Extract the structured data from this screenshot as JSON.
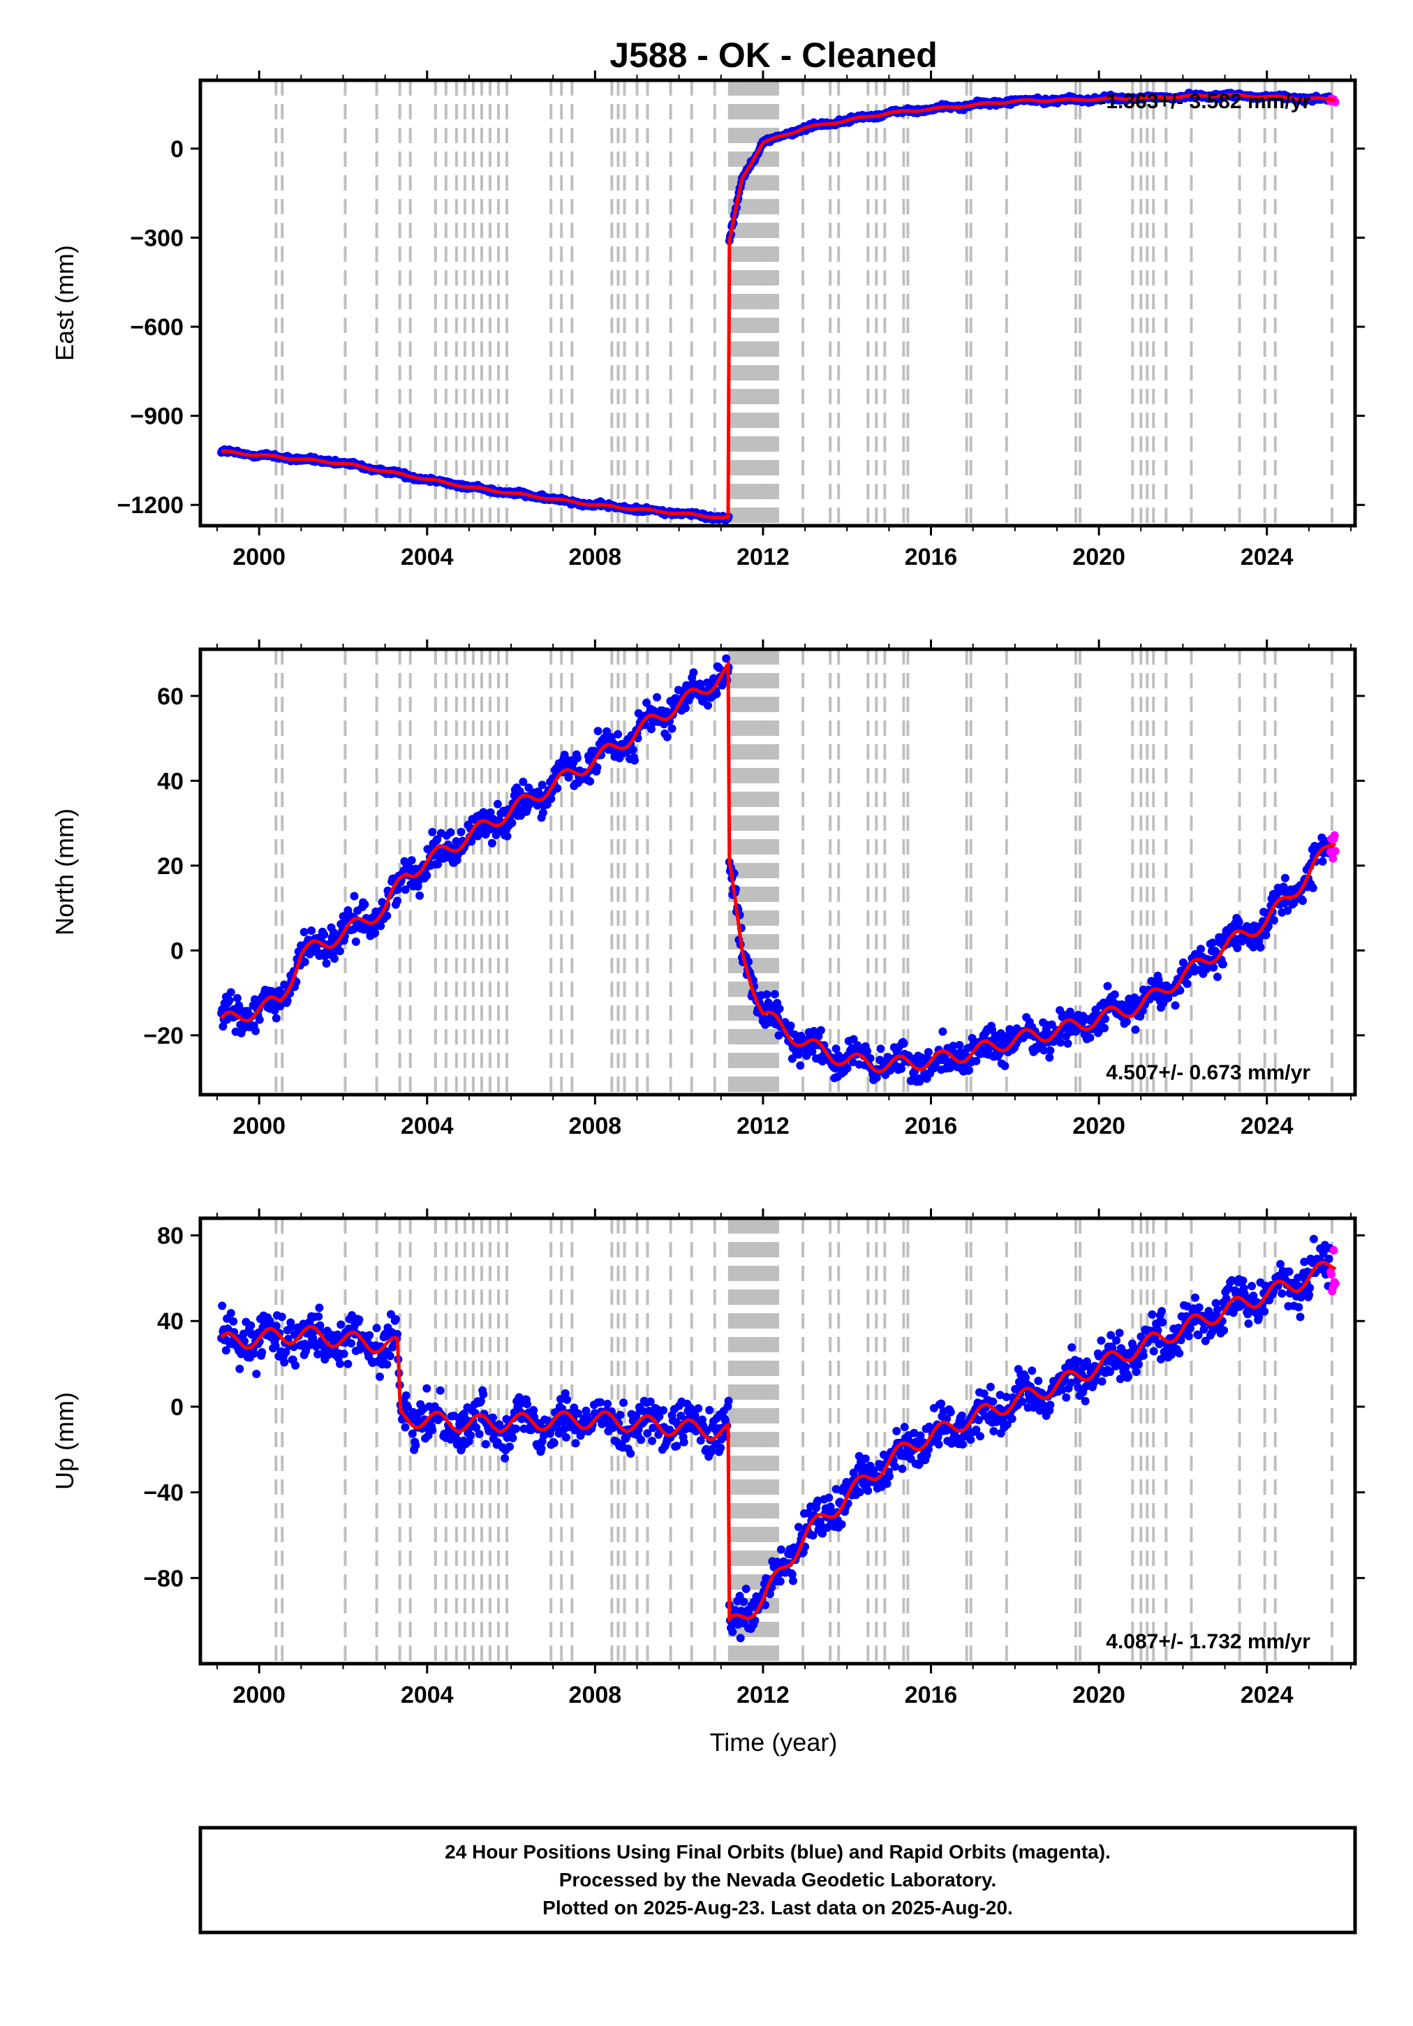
{
  "title": "J588  - OK - Cleaned",
  "xlabel": "Time (year)",
  "footer": [
    "24 Hour Positions Using Final Orbits (blue) and Rapid Orbits (magenta).",
    "Processed by the Nevada Geodetic Laboratory.",
    "Plotted on 2025-Aug-23. Last data on 2025-Aug-20."
  ],
  "colors": {
    "final_orbits": "#0000ff",
    "rapid_orbits": "#ff00ff",
    "model_fit": "#ff0000",
    "steps": "#bfbfbf"
  },
  "chart_data": [
    {
      "type": "scatter",
      "name": "east",
      "ylabel": "East (mm)",
      "xlim": [
        1998.6,
        2026.1
      ],
      "ylim": [
        -1270,
        230
      ],
      "xticks": [
        2000,
        2004,
        2008,
        2012,
        2016,
        2020,
        2024
      ],
      "yticks": [
        0,
        -300,
        -600,
        -900,
        -1200
      ],
      "rate_text": "-1.363+/- 3.582 mm/yr",
      "rate_position": "top-right",
      "grid": false,
      "data_span": [
        1999.1,
        2025.63
      ],
      "key_points": [
        {
          "x": 1999.1,
          "y": -1020
        },
        {
          "x": 2002.0,
          "y": -1060
        },
        {
          "x": 2005.0,
          "y": -1140
        },
        {
          "x": 2008.0,
          "y": -1200
        },
        {
          "x": 2011.18,
          "y": -1245
        },
        {
          "x": 2011.19,
          "y": -320
        },
        {
          "x": 2011.5,
          "y": -100
        },
        {
          "x": 2012.0,
          "y": 20
        },
        {
          "x": 2013.0,
          "y": 70
        },
        {
          "x": 2015.0,
          "y": 120
        },
        {
          "x": 2018.0,
          "y": 160
        },
        {
          "x": 2021.0,
          "y": 170
        },
        {
          "x": 2023.0,
          "y": 180
        },
        {
          "x": 2025.6,
          "y": 165
        }
      ]
    },
    {
      "type": "scatter",
      "name": "north",
      "ylabel": "North (mm)",
      "xlim": [
        1998.6,
        2026.1
      ],
      "ylim": [
        -34,
        71
      ],
      "xticks": [
        2000,
        2004,
        2008,
        2012,
        2016,
        2020,
        2024
      ],
      "yticks": [
        60,
        40,
        20,
        0,
        -20
      ],
      "rate_text": "4.507+/- 0.673 mm/yr",
      "rate_position": "bottom-right",
      "grid": false,
      "data_span": [
        1999.1,
        2025.63
      ],
      "key_points": [
        {
          "x": 1999.1,
          "y": -17
        },
        {
          "x": 2000.5,
          "y": -12
        },
        {
          "x": 2001.0,
          "y": -1
        },
        {
          "x": 2002.0,
          "y": 4
        },
        {
          "x": 2003.0,
          "y": 10
        },
        {
          "x": 2003.5,
          "y": 18
        },
        {
          "x": 2004.5,
          "y": 24
        },
        {
          "x": 2005.5,
          "y": 30
        },
        {
          "x": 2006.5,
          "y": 36
        },
        {
          "x": 2007.5,
          "y": 42
        },
        {
          "x": 2008.5,
          "y": 48
        },
        {
          "x": 2009.5,
          "y": 55
        },
        {
          "x": 2010.5,
          "y": 61
        },
        {
          "x": 2011.18,
          "y": 66
        },
        {
          "x": 2011.19,
          "y": 20
        },
        {
          "x": 2011.5,
          "y": 0
        },
        {
          "x": 2012.0,
          "y": -15
        },
        {
          "x": 2013.0,
          "y": -22
        },
        {
          "x": 2014.0,
          "y": -26
        },
        {
          "x": 2015.0,
          "y": -27
        },
        {
          "x": 2016.0,
          "y": -26
        },
        {
          "x": 2017.0,
          "y": -24
        },
        {
          "x": 2018.0,
          "y": -21
        },
        {
          "x": 2019.0,
          "y": -19
        },
        {
          "x": 2020.0,
          "y": -16
        },
        {
          "x": 2021.0,
          "y": -13
        },
        {
          "x": 2022.0,
          "y": -6
        },
        {
          "x": 2023.0,
          "y": 1
        },
        {
          "x": 2024.0,
          "y": 7
        },
        {
          "x": 2025.0,
          "y": 18
        },
        {
          "x": 2025.6,
          "y": 26
        }
      ]
    },
    {
      "type": "scatter",
      "name": "up",
      "ylabel": "Up (mm)",
      "xlim": [
        1998.6,
        2026.1
      ],
      "ylim": [
        -120,
        88
      ],
      "xticks": [
        2000,
        2004,
        2008,
        2012,
        2016,
        2020,
        2024
      ],
      "yticks": [
        80,
        40,
        0,
        -40,
        -80
      ],
      "rate_text": "4.087+/- 1.732 mm/yr",
      "rate_position": "bottom-right",
      "grid": false,
      "data_span": [
        1999.1,
        2025.63
      ],
      "key_points": [
        {
          "x": 1999.1,
          "y": 30
        },
        {
          "x": 2001.0,
          "y": 34
        },
        {
          "x": 2003.3,
          "y": 28
        },
        {
          "x": 2003.36,
          "y": -5
        },
        {
          "x": 2005.0,
          "y": -8
        },
        {
          "x": 2008.0,
          "y": -6
        },
        {
          "x": 2011.18,
          "y": -12
        },
        {
          "x": 2011.19,
          "y": -103
        },
        {
          "x": 2012.0,
          "y": -90
        },
        {
          "x": 2013.0,
          "y": -60
        },
        {
          "x": 2014.5,
          "y": -33
        },
        {
          "x": 2015.5,
          "y": -18
        },
        {
          "x": 2017.0,
          "y": -5
        },
        {
          "x": 2019.0,
          "y": 10
        },
        {
          "x": 2021.0,
          "y": 28
        },
        {
          "x": 2023.0,
          "y": 45
        },
        {
          "x": 2025.0,
          "y": 60
        },
        {
          "x": 2025.6,
          "y": 67
        }
      ]
    }
  ],
  "step_epochs": [
    2000.4,
    2000.55,
    2002.05,
    2002.8,
    2003.35,
    2003.6,
    2004.2,
    2004.45,
    2004.7,
    2004.9,
    2005.1,
    2005.3,
    2005.5,
    2005.7,
    2005.9,
    2006.95,
    2007.2,
    2007.45,
    2008.4,
    2008.55,
    2008.7,
    2009.0,
    2009.25,
    2009.8,
    2010.3,
    2010.85,
    2011.2,
    2011.25,
    2011.3,
    2011.35,
    2011.4,
    2011.45,
    2011.5,
    2011.55,
    2011.6,
    2011.65,
    2011.7,
    2011.75,
    2011.8,
    2011.85,
    2011.9,
    2011.95,
    2012.0,
    2012.05,
    2012.1,
    2012.15,
    2012.2,
    2012.25,
    2012.3,
    2012.35,
    2012.95,
    2013.6,
    2013.8,
    2014.5,
    2014.7,
    2014.9,
    2015.35,
    2015.45,
    2016.85,
    2016.95,
    2017.8,
    2019.45,
    2019.55,
    2020.8,
    2021.0,
    2021.15,
    2021.3,
    2021.6,
    2022.2,
    2023.35,
    2023.95,
    2024.2,
    2025.55
  ]
}
